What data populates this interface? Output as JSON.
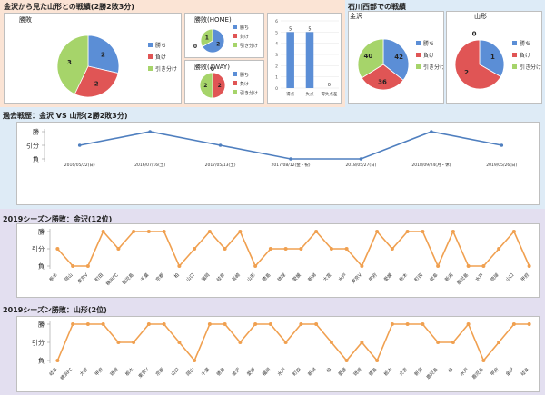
{
  "colors": {
    "win": "#5b8ed6",
    "loss": "#e05555",
    "draw": "#a6d46a",
    "line_blue": "#4f7fbf",
    "line_orange": "#f0a050",
    "bg_top_left": "#fbe4d5",
    "bg_top_right": "#ddebf7",
    "bg_mid": "#deebf6",
    "bg_low": "#e3dff0"
  },
  "top_left": {
    "title": "金沢から見た山形との戦績(2勝2敗3分)",
    "overall_title": "勝敗",
    "home_title": "勝敗(HOME)",
    "away_title": "勝敗(AWAY)",
    "legend": [
      "勝ち",
      "負け",
      "引き分け"
    ]
  },
  "top_right": {
    "title": "石川西部での戦績",
    "left_label": "金沢",
    "right_label": "山形",
    "legend": [
      "勝ち",
      "負け",
      "引き分け"
    ]
  },
  "mid": {
    "title": "過去戦歴：金沢 VS 山形(2勝2敗3分)"
  },
  "kanazawa": {
    "title": "2019シーズン勝敗：金沢(12位)"
  },
  "yamagata": {
    "title": "2019シーズン勝敗：山形(2位)"
  },
  "chart_data": [
    {
      "id": "overall",
      "type": "pie",
      "title": "勝敗",
      "categories": [
        "勝ち",
        "負け",
        "引き分け"
      ],
      "values": [
        2,
        2,
        3
      ]
    },
    {
      "id": "home",
      "type": "pie",
      "title": "勝敗(HOME)",
      "categories": [
        "勝ち",
        "負け",
        "引き分け"
      ],
      "values": [
        2,
        0,
        1
      ]
    },
    {
      "id": "away",
      "type": "pie",
      "title": "勝敗(AWAY)",
      "categories": [
        "勝ち",
        "負け",
        "引き分け"
      ],
      "values": [
        0,
        2,
        2
      ]
    },
    {
      "id": "goals",
      "type": "bar",
      "categories": [
        "得点",
        "失点",
        "得失点差"
      ],
      "values": [
        5,
        5,
        0
      ],
      "ylim": [
        0,
        6
      ],
      "yticks": [
        0,
        1,
        2,
        3,
        4,
        5,
        6
      ]
    },
    {
      "id": "kanazawa_seibu",
      "type": "pie",
      "title": "金沢",
      "categories": [
        "勝ち",
        "負け",
        "引き分け"
      ],
      "values": [
        42,
        36,
        40
      ]
    },
    {
      "id": "yamagata_seibu",
      "type": "pie",
      "title": "山形",
      "categories": [
        "勝ち",
        "負け",
        "引き分け"
      ],
      "values": [
        1,
        2,
        0
      ]
    },
    {
      "id": "history",
      "type": "line",
      "title": "過去戦歴：金沢 VS 山形(2勝2敗3分)",
      "levels": [
        "負",
        "引分",
        "勝"
      ],
      "x": [
        "2016/05/22(日)",
        "2016/07/16(土)",
        "2017/05/13(土)",
        "2017/08/12(金・祝)",
        "2018/05/27(日)",
        "2018/09/24(月・休)",
        "2019/05/26(日)"
      ],
      "values": [
        "引分",
        "勝",
        "引分",
        "負",
        "負",
        "勝",
        "引分"
      ]
    },
    {
      "id": "kanazawa_season",
      "type": "line",
      "title": "2019シーズン勝敗：金沢(12位)",
      "levels": [
        "負",
        "引分",
        "勝"
      ],
      "x": [
        "栃木",
        "岡山",
        "東京V",
        "町田",
        "横浜FC",
        "鹿児島",
        "千葉",
        "京都",
        "柏",
        "山口",
        "福岡",
        "岐阜",
        "長崎",
        "山形",
        "徳島",
        "琉球",
        "愛媛",
        "新潟",
        "大宮",
        "水戸",
        "東京V",
        "甲府",
        "愛媛",
        "栃木",
        "町田",
        "岐阜",
        "新潟",
        "鹿児島",
        "水戸",
        "琉球",
        "山口",
        "甲府"
      ],
      "values": [
        "引分",
        "負",
        "負",
        "勝",
        "引分",
        "勝",
        "勝",
        "勝",
        "負",
        "引分",
        "勝",
        "引分",
        "勝",
        "負",
        "引分",
        "引分",
        "引分",
        "勝",
        "引分",
        "引分",
        "負",
        "勝",
        "引分",
        "勝",
        "勝",
        "負",
        "勝",
        "負",
        "負",
        "引分",
        "勝",
        "負"
      ]
    },
    {
      "id": "yamagata_season",
      "type": "line",
      "title": "2019シーズン勝敗：山形(2位)",
      "levels": [
        "負",
        "引分",
        "勝"
      ],
      "x": [
        "岐阜",
        "横浜FC",
        "大宮",
        "甲府",
        "琉球",
        "栃木",
        "東京V",
        "京都",
        "山口",
        "岡山",
        "千葉",
        "徳島",
        "金沢",
        "愛媛",
        "福岡",
        "水戸",
        "町田",
        "新潟",
        "柏",
        "愛媛",
        "琉球",
        "徳島",
        "栃木",
        "大宮",
        "新潟",
        "鹿児島",
        "柏",
        "水戸",
        "鹿児島",
        "甲府",
        "金沢",
        "岐阜"
      ],
      "values": [
        "負",
        "勝",
        "勝",
        "勝",
        "引分",
        "引分",
        "勝",
        "勝",
        "引分",
        "負",
        "勝",
        "勝",
        "引分",
        "勝",
        "勝",
        "引分",
        "勝",
        "勝",
        "引分",
        "負",
        "引分",
        "負",
        "勝",
        "勝",
        "勝",
        "引分",
        "引分",
        "勝",
        "負",
        "引分",
        "勝",
        "勝"
      ]
    }
  ]
}
